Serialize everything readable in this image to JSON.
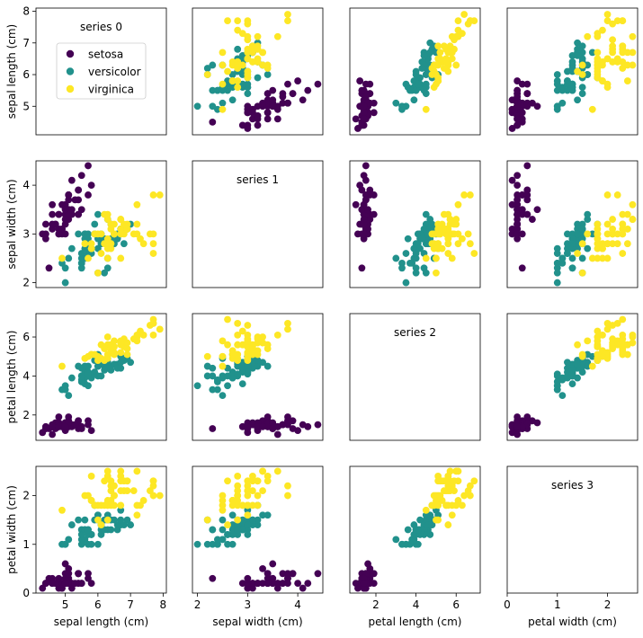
{
  "chart_data": {
    "type": "scatter",
    "grid": false,
    "variables": [
      "sepal length (cm)",
      "sepal width (cm)",
      "petal length (cm)",
      "petal width (cm)"
    ],
    "ranges": {
      "sepal length (cm)": [
        4.1,
        8.1
      ],
      "sepal width (cm)": [
        1.9,
        4.5
      ],
      "petal length (cm)": [
        0.7,
        7.2
      ],
      "petal width (cm)": [
        0.0,
        2.6
      ]
    },
    "ticks": {
      "sepal length (cm)": [
        5,
        6,
        7,
        8
      ],
      "sepal width (cm)": [
        2,
        3,
        4
      ],
      "petal length (cm)": [
        2,
        4,
        6
      ],
      "petal width (cm)": [
        0,
        1,
        2
      ]
    },
    "diagonal_texts": [
      "series 0",
      "series 1",
      "series 2",
      "series 3"
    ],
    "legend": {
      "placement": "upper-left of top-left panel",
      "entries": [
        "setosa",
        "versicolor",
        "virginica"
      ]
    },
    "colors": {
      "setosa": "#440154",
      "versicolor": "#21918c",
      "virginica": "#fde725"
    },
    "series": [
      {
        "name": "setosa",
        "points": [
          [
            5.1,
            3.5,
            1.4,
            0.2
          ],
          [
            4.9,
            3.0,
            1.4,
            0.2
          ],
          [
            4.7,
            3.2,
            1.3,
            0.2
          ],
          [
            4.6,
            3.1,
            1.5,
            0.2
          ],
          [
            5.0,
            3.6,
            1.4,
            0.2
          ],
          [
            5.4,
            3.9,
            1.7,
            0.4
          ],
          [
            4.6,
            3.4,
            1.4,
            0.3
          ],
          [
            5.0,
            3.4,
            1.5,
            0.2
          ],
          [
            4.4,
            2.9,
            1.4,
            0.2
          ],
          [
            4.9,
            3.1,
            1.5,
            0.1
          ],
          [
            5.4,
            3.7,
            1.5,
            0.2
          ],
          [
            4.8,
            3.4,
            1.6,
            0.2
          ],
          [
            4.8,
            3.0,
            1.4,
            0.1
          ],
          [
            4.3,
            3.0,
            1.1,
            0.1
          ],
          [
            5.8,
            4.0,
            1.2,
            0.2
          ],
          [
            5.7,
            4.4,
            1.5,
            0.4
          ],
          [
            5.4,
            3.9,
            1.3,
            0.4
          ],
          [
            5.1,
            3.5,
            1.4,
            0.3
          ],
          [
            5.7,
            3.8,
            1.7,
            0.3
          ],
          [
            5.1,
            3.8,
            1.5,
            0.3
          ],
          [
            5.4,
            3.4,
            1.7,
            0.2
          ],
          [
            5.1,
            3.7,
            1.5,
            0.4
          ],
          [
            4.6,
            3.6,
            1.0,
            0.2
          ],
          [
            5.1,
            3.3,
            1.7,
            0.5
          ],
          [
            4.8,
            3.4,
            1.9,
            0.2
          ],
          [
            5.0,
            3.0,
            1.6,
            0.2
          ],
          [
            5.0,
            3.4,
            1.6,
            0.4
          ],
          [
            5.2,
            3.5,
            1.5,
            0.2
          ],
          [
            5.2,
            3.4,
            1.4,
            0.2
          ],
          [
            4.7,
            3.2,
            1.6,
            0.2
          ],
          [
            4.8,
            3.1,
            1.6,
            0.2
          ],
          [
            5.4,
            3.4,
            1.5,
            0.4
          ],
          [
            5.2,
            4.1,
            1.5,
            0.1
          ],
          [
            5.5,
            4.2,
            1.4,
            0.2
          ],
          [
            4.9,
            3.1,
            1.5,
            0.2
          ],
          [
            5.0,
            3.2,
            1.2,
            0.2
          ],
          [
            5.5,
            3.5,
            1.3,
            0.2
          ],
          [
            4.9,
            3.6,
            1.4,
            0.1
          ],
          [
            4.4,
            3.0,
            1.3,
            0.2
          ],
          [
            5.1,
            3.4,
            1.5,
            0.2
          ],
          [
            5.0,
            3.5,
            1.3,
            0.3
          ],
          [
            4.5,
            2.3,
            1.3,
            0.3
          ],
          [
            4.4,
            3.2,
            1.3,
            0.2
          ],
          [
            5.0,
            3.5,
            1.6,
            0.6
          ],
          [
            5.1,
            3.8,
            1.9,
            0.4
          ],
          [
            4.8,
            3.0,
            1.4,
            0.3
          ],
          [
            5.1,
            3.8,
            1.6,
            0.2
          ],
          [
            4.6,
            3.2,
            1.4,
            0.2
          ],
          [
            5.3,
            3.7,
            1.5,
            0.2
          ],
          [
            5.0,
            3.3,
            1.4,
            0.2
          ]
        ]
      },
      {
        "name": "versicolor",
        "points": [
          [
            7.0,
            3.2,
            4.7,
            1.4
          ],
          [
            6.4,
            3.2,
            4.5,
            1.5
          ],
          [
            6.9,
            3.1,
            4.9,
            1.5
          ],
          [
            5.5,
            2.3,
            4.0,
            1.3
          ],
          [
            6.5,
            2.8,
            4.6,
            1.5
          ],
          [
            5.7,
            2.8,
            4.5,
            1.3
          ],
          [
            6.3,
            3.3,
            4.7,
            1.6
          ],
          [
            4.9,
            2.4,
            3.3,
            1.0
          ],
          [
            6.6,
            2.9,
            4.6,
            1.3
          ],
          [
            5.2,
            2.7,
            3.9,
            1.4
          ],
          [
            5.0,
            2.0,
            3.5,
            1.0
          ],
          [
            5.9,
            3.0,
            4.2,
            1.5
          ],
          [
            6.0,
            2.2,
            4.0,
            1.0
          ],
          [
            6.1,
            2.9,
            4.7,
            1.4
          ],
          [
            5.6,
            2.9,
            3.6,
            1.3
          ],
          [
            6.7,
            3.1,
            4.4,
            1.4
          ],
          [
            5.6,
            3.0,
            4.5,
            1.5
          ],
          [
            5.8,
            2.7,
            4.1,
            1.0
          ],
          [
            6.2,
            2.2,
            4.5,
            1.5
          ],
          [
            5.6,
            2.5,
            3.9,
            1.1
          ],
          [
            5.9,
            3.2,
            4.8,
            1.8
          ],
          [
            6.1,
            2.8,
            4.0,
            1.3
          ],
          [
            6.3,
            2.5,
            4.9,
            1.5
          ],
          [
            6.1,
            2.8,
            4.7,
            1.2
          ],
          [
            6.4,
            2.9,
            4.3,
            1.3
          ],
          [
            6.6,
            3.0,
            4.4,
            1.4
          ],
          [
            6.8,
            2.8,
            4.8,
            1.4
          ],
          [
            6.7,
            3.0,
            5.0,
            1.7
          ],
          [
            6.0,
            2.9,
            4.5,
            1.5
          ],
          [
            5.7,
            2.6,
            3.5,
            1.0
          ],
          [
            5.5,
            2.4,
            3.8,
            1.1
          ],
          [
            5.5,
            2.4,
            3.7,
            1.0
          ],
          [
            5.8,
            2.7,
            3.9,
            1.2
          ],
          [
            6.0,
            2.7,
            5.1,
            1.6
          ],
          [
            5.4,
            3.0,
            4.5,
            1.5
          ],
          [
            6.0,
            3.4,
            4.5,
            1.6
          ],
          [
            6.7,
            3.1,
            4.7,
            1.5
          ],
          [
            6.3,
            2.3,
            4.4,
            1.3
          ],
          [
            5.6,
            3.0,
            4.1,
            1.3
          ],
          [
            5.5,
            2.5,
            4.0,
            1.3
          ],
          [
            5.5,
            2.6,
            4.4,
            1.2
          ],
          [
            6.1,
            3.0,
            4.6,
            1.4
          ],
          [
            5.8,
            2.6,
            4.0,
            1.2
          ],
          [
            5.0,
            2.3,
            3.3,
            1.0
          ],
          [
            5.6,
            2.7,
            4.2,
            1.3
          ],
          [
            5.7,
            3.0,
            4.2,
            1.2
          ],
          [
            5.7,
            2.9,
            4.2,
            1.3
          ],
          [
            6.2,
            2.9,
            4.3,
            1.3
          ],
          [
            5.1,
            2.5,
            3.0,
            1.1
          ],
          [
            5.7,
            2.8,
            4.1,
            1.3
          ]
        ]
      },
      {
        "name": "virginica",
        "points": [
          [
            6.3,
            3.3,
            6.0,
            2.5
          ],
          [
            5.8,
            2.7,
            5.1,
            1.9
          ],
          [
            7.1,
            3.0,
            5.9,
            2.1
          ],
          [
            6.3,
            2.9,
            5.6,
            1.8
          ],
          [
            6.5,
            3.0,
            5.8,
            2.2
          ],
          [
            7.6,
            3.0,
            6.6,
            2.1
          ],
          [
            4.9,
            2.5,
            4.5,
            1.7
          ],
          [
            7.3,
            2.9,
            6.3,
            1.8
          ],
          [
            6.7,
            2.5,
            5.8,
            1.8
          ],
          [
            7.2,
            3.6,
            6.1,
            2.5
          ],
          [
            6.5,
            3.2,
            5.1,
            2.0
          ],
          [
            6.4,
            2.7,
            5.3,
            1.9
          ],
          [
            6.8,
            3.0,
            5.5,
            2.1
          ],
          [
            5.7,
            2.5,
            5.0,
            2.0
          ],
          [
            5.8,
            2.8,
            5.1,
            2.4
          ],
          [
            6.4,
            3.2,
            5.3,
            2.3
          ],
          [
            6.5,
            3.0,
            5.5,
            1.8
          ],
          [
            7.7,
            3.8,
            6.7,
            2.2
          ],
          [
            7.7,
            2.6,
            6.9,
            2.3
          ],
          [
            6.0,
            2.2,
            5.0,
            1.5
          ],
          [
            6.9,
            3.2,
            5.7,
            2.3
          ],
          [
            5.6,
            2.8,
            4.9,
            2.0
          ],
          [
            7.7,
            2.8,
            6.7,
            2.0
          ],
          [
            6.3,
            2.7,
            4.9,
            1.8
          ],
          [
            6.7,
            3.3,
            5.7,
            2.1
          ],
          [
            7.2,
            3.2,
            6.0,
            1.8
          ],
          [
            6.2,
            2.8,
            4.8,
            1.8
          ],
          [
            6.1,
            3.0,
            4.9,
            1.8
          ],
          [
            6.4,
            2.8,
            5.6,
            2.1
          ],
          [
            7.2,
            3.0,
            5.8,
            1.6
          ],
          [
            7.4,
            2.8,
            6.1,
            1.9
          ],
          [
            7.9,
            3.8,
            6.4,
            2.0
          ],
          [
            6.4,
            2.8,
            5.6,
            2.2
          ],
          [
            6.3,
            2.8,
            5.1,
            1.5
          ],
          [
            6.1,
            2.6,
            5.6,
            1.4
          ],
          [
            7.7,
            3.0,
            6.1,
            2.3
          ],
          [
            6.3,
            3.4,
            5.6,
            2.4
          ],
          [
            6.4,
            3.1,
            5.5,
            1.8
          ],
          [
            6.0,
            3.0,
            4.8,
            1.8
          ],
          [
            6.9,
            3.1,
            5.4,
            2.1
          ],
          [
            6.7,
            3.1,
            5.6,
            2.4
          ],
          [
            6.9,
            3.1,
            5.1,
            2.3
          ],
          [
            5.8,
            2.7,
            5.1,
            1.9
          ],
          [
            6.8,
            3.2,
            5.9,
            2.3
          ],
          [
            6.7,
            3.3,
            5.7,
            2.5
          ],
          [
            6.7,
            3.0,
            5.2,
            2.3
          ],
          [
            6.3,
            2.5,
            5.0,
            1.9
          ],
          [
            6.5,
            3.0,
            5.2,
            2.0
          ],
          [
            6.2,
            3.4,
            5.4,
            2.3
          ],
          [
            5.9,
            3.0,
            5.1,
            1.8
          ]
        ]
      }
    ]
  }
}
